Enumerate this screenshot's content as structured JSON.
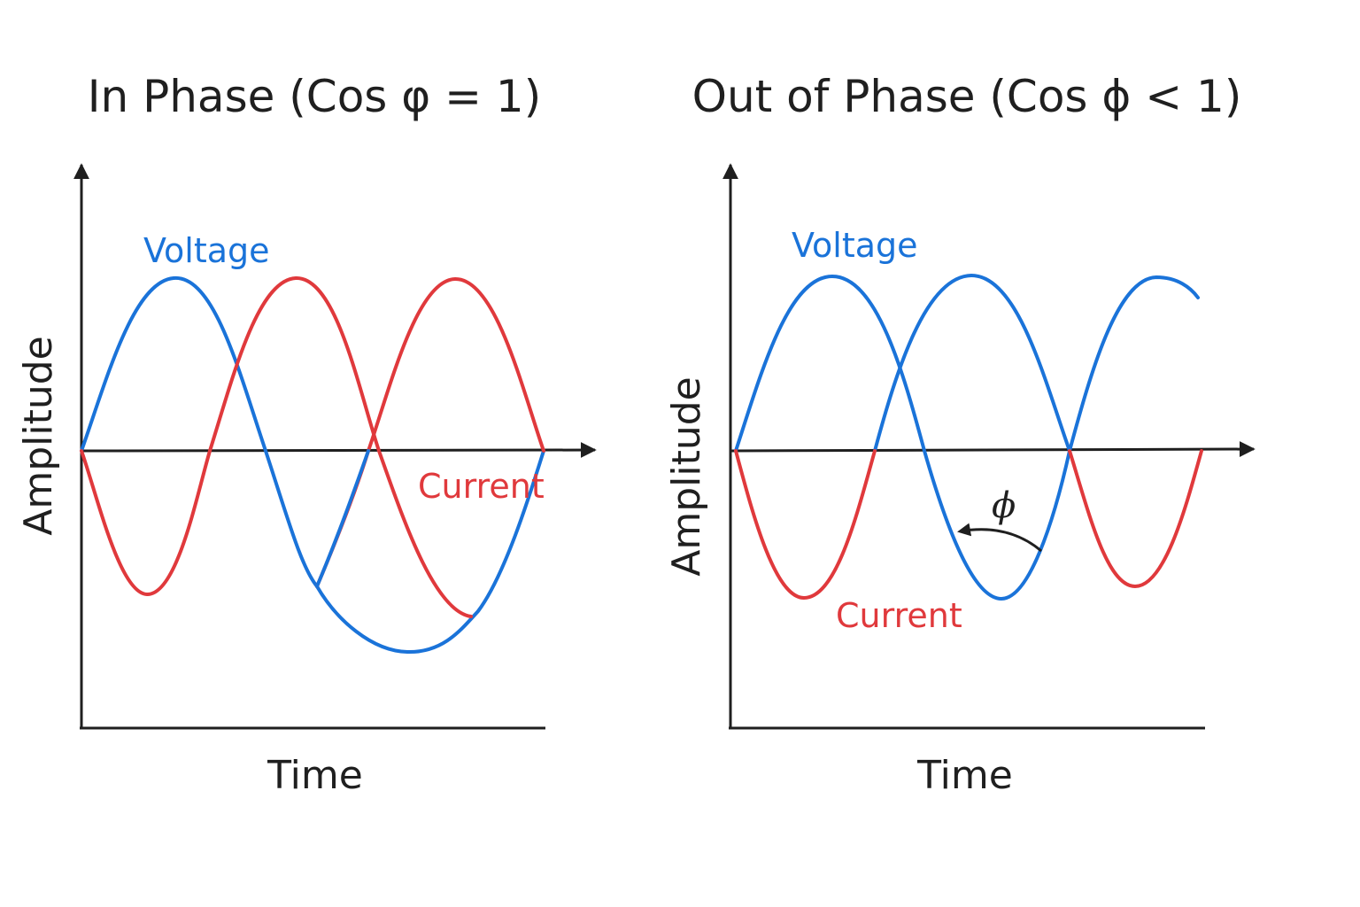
{
  "colors": {
    "voltage": "#1a73d9",
    "current": "#e0393c",
    "axis": "#1f1f1f"
  },
  "panels": [
    {
      "title": "In Phase (Cos φ = 1)",
      "xlabel": "Time",
      "ylabel": "Amplitude",
      "voltage_label": "Voltage",
      "current_label": "Current"
    },
    {
      "title": "Out of Phase (Cos ϕ < 1)",
      "xlabel": "Time",
      "ylabel": "Amplitude",
      "voltage_label": "Voltage",
      "current_label": "Current",
      "phase_symbol": "ϕ"
    }
  ]
}
